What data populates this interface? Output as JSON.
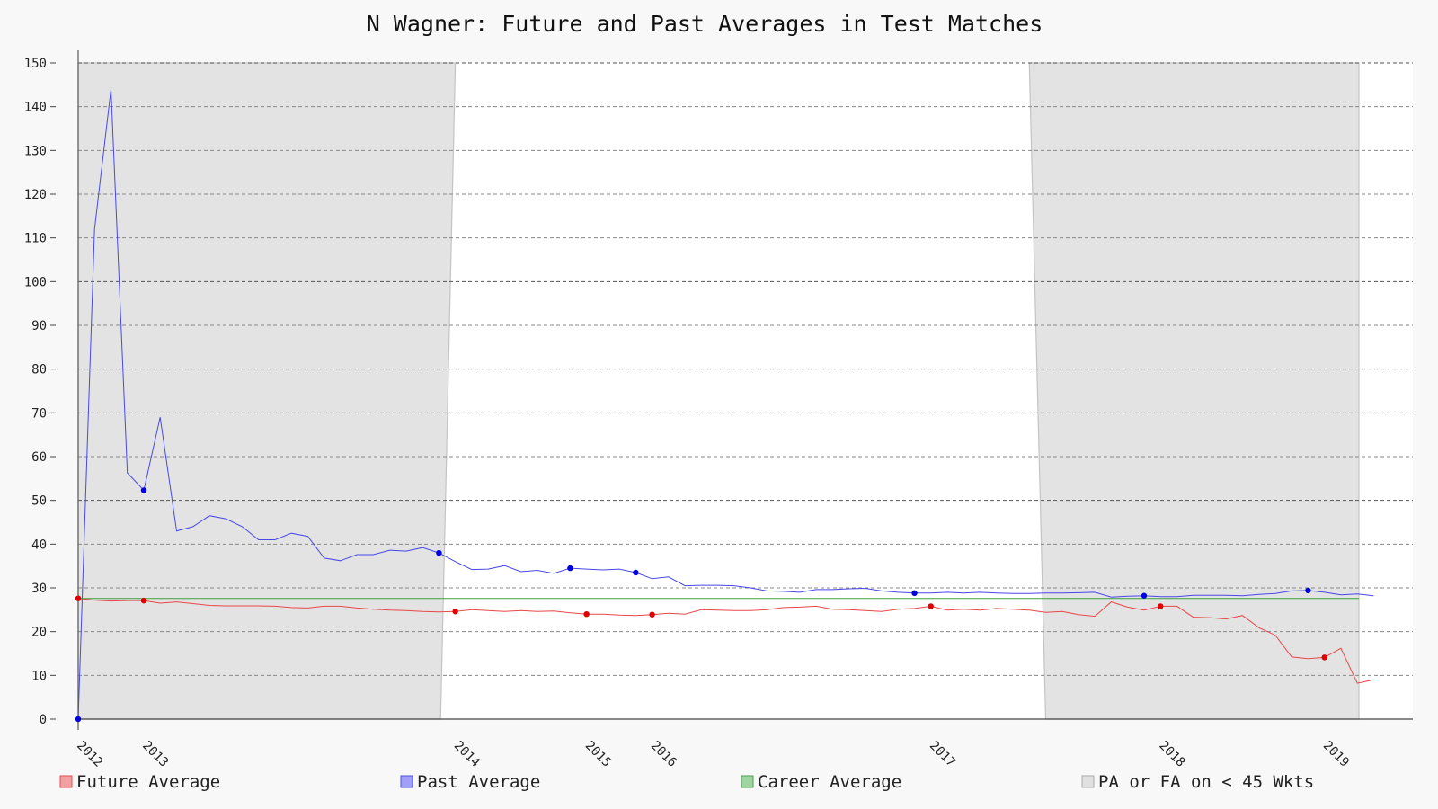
{
  "chart_data": {
    "type": "line",
    "title": "N Wagner: Future and Past Averages in Test Matches",
    "xlabel": "",
    "ylabel": "",
    "ylim": [
      0,
      150
    ],
    "yticks": [
      0,
      10,
      20,
      30,
      40,
      50,
      60,
      70,
      80,
      90,
      100,
      110,
      120,
      130,
      140,
      150
    ],
    "x_tick_labels": [
      {
        "label": "2012",
        "match": 0
      },
      {
        "label": "2013",
        "match": 4
      },
      {
        "label": "2014",
        "match": 23
      },
      {
        "label": "2015",
        "match": 31
      },
      {
        "label": "2016",
        "match": 35
      },
      {
        "label": "2017",
        "match": 52
      },
      {
        "label": "2018",
        "match": 66
      },
      {
        "label": "2019",
        "match": 76
      }
    ],
    "shaded_regions": [
      {
        "top_start": 0,
        "top_end": 23.0,
        "bottom_start": 0,
        "bottom_end": 22.1
      },
      {
        "top_start": 58.0,
        "top_end": 78.1,
        "bottom_start": 59.0,
        "bottom_end": 78.1
      }
    ],
    "grid": true,
    "legend_position": "bottom",
    "legend": [
      {
        "label": "Future Average",
        "color": "#f4a0a0",
        "border": "#e05050"
      },
      {
        "label": "Past Average",
        "color": "#a0a0f4",
        "border": "#5050e0"
      },
      {
        "label": "Career Average",
        "color": "#a0d4a0",
        "border": "#50a050"
      },
      {
        "label": "PA or FA on < 45 Wkts",
        "color": "#e0e0e0",
        "border": "#aaaaaa"
      }
    ],
    "series": [
      {
        "name": "Future Average",
        "color": "#e84848",
        "values": [
          27.6,
          27.2,
          27.0,
          27.1,
          27.1,
          26.5,
          26.8,
          26.4,
          26.0,
          25.9,
          25.9,
          25.9,
          25.8,
          25.5,
          25.4,
          25.8,
          25.8,
          25.4,
          25.1,
          24.9,
          24.8,
          24.6,
          24.5,
          24.6,
          25.0,
          24.8,
          24.6,
          24.8,
          24.6,
          24.7,
          24.3,
          24.0,
          24.0,
          23.8,
          23.7,
          23.9,
          24.2,
          24.0,
          25.0,
          24.9,
          24.8,
          24.8,
          25.0,
          25.5,
          25.6,
          25.8,
          25.1,
          25.0,
          24.8,
          24.6,
          25.1,
          25.3,
          25.8,
          24.9,
          25.1,
          24.9,
          25.3,
          25.1,
          24.9,
          24.4,
          24.6,
          23.9,
          23.5,
          26.8,
          25.6,
          24.9,
          25.8,
          25.8,
          23.3,
          23.2,
          22.9,
          23.7,
          20.9,
          19.2,
          14.2,
          13.8,
          14.1,
          16.2,
          8.2,
          9.0
        ],
        "markers": [
          0,
          4,
          23,
          31,
          35,
          52,
          66,
          76
        ]
      },
      {
        "name": "Past Average",
        "color": "#4848e8",
        "values": [
          0.0,
          112.0,
          144.0,
          56.3,
          52.3,
          69.0,
          43.0,
          44.0,
          46.5,
          45.8,
          44.0,
          41.0,
          41.0,
          42.5,
          41.8,
          36.8,
          36.2,
          37.6,
          37.6,
          38.6,
          38.4,
          39.2,
          38.0,
          36.0,
          34.2,
          34.3,
          35.1,
          33.7,
          34.0,
          33.3,
          34.5,
          34.3,
          34.1,
          34.3,
          33.5,
          32.1,
          32.5,
          30.5,
          30.6,
          30.6,
          30.5,
          30.0,
          29.3,
          29.2,
          29.0,
          29.6,
          29.6,
          29.8,
          29.9,
          29.3,
          29.0,
          28.8,
          28.8,
          29.0,
          28.8,
          29.0,
          28.8,
          28.7,
          28.7,
          28.8,
          28.8,
          28.9,
          29.0,
          27.9,
          28.1,
          28.2,
          28.0,
          28.0,
          28.3,
          28.3,
          28.3,
          28.2,
          28.5,
          28.7,
          29.3,
          29.4,
          29.0,
          28.4,
          28.6,
          28.2
        ],
        "markers": [
          0,
          4,
          22,
          30,
          34,
          51,
          65,
          75
        ]
      },
      {
        "name": "Career Average",
        "color": "#40a040",
        "values": [
          27.6,
          27.6
        ],
        "x": [
          0,
          78.1
        ]
      }
    ]
  }
}
